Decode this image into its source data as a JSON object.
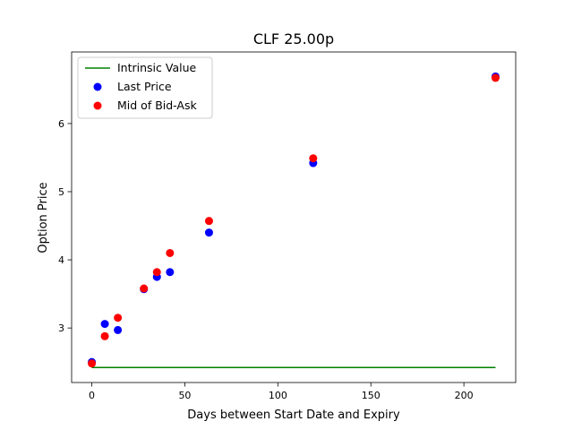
{
  "chart_data": {
    "type": "scatter",
    "title": "CLF 25.00p",
    "xlabel": "Days between Start Date and Expiry",
    "ylabel": "Option Price",
    "xlim": [
      -10.85,
      227.85
    ],
    "ylim": [
      2.2,
      7.05
    ],
    "xticks": [
      0,
      50,
      100,
      150,
      200
    ],
    "yticks": [
      3,
      4,
      5,
      6
    ],
    "grid": false,
    "legend_position": "top-left",
    "series": [
      {
        "name": "Intrinsic Value",
        "kind": "line",
        "color": "#008000",
        "x": [
          0,
          217
        ],
        "y": [
          2.42,
          2.42
        ]
      },
      {
        "name": "Last Price",
        "kind": "scatter",
        "color": "#0000ff",
        "x": [
          0,
          7,
          14,
          28,
          35,
          42,
          63,
          119,
          217
        ],
        "y": [
          2.5,
          3.06,
          2.97,
          3.57,
          3.75,
          3.82,
          4.4,
          5.42,
          6.69
        ]
      },
      {
        "name": "Mid of Bid-Ask",
        "kind": "scatter",
        "color": "#ff0000",
        "x": [
          0,
          7,
          14,
          28,
          35,
          42,
          63,
          119,
          217
        ],
        "y": [
          2.48,
          2.88,
          3.15,
          3.58,
          3.82,
          4.1,
          4.57,
          5.49,
          6.67
        ]
      }
    ]
  }
}
